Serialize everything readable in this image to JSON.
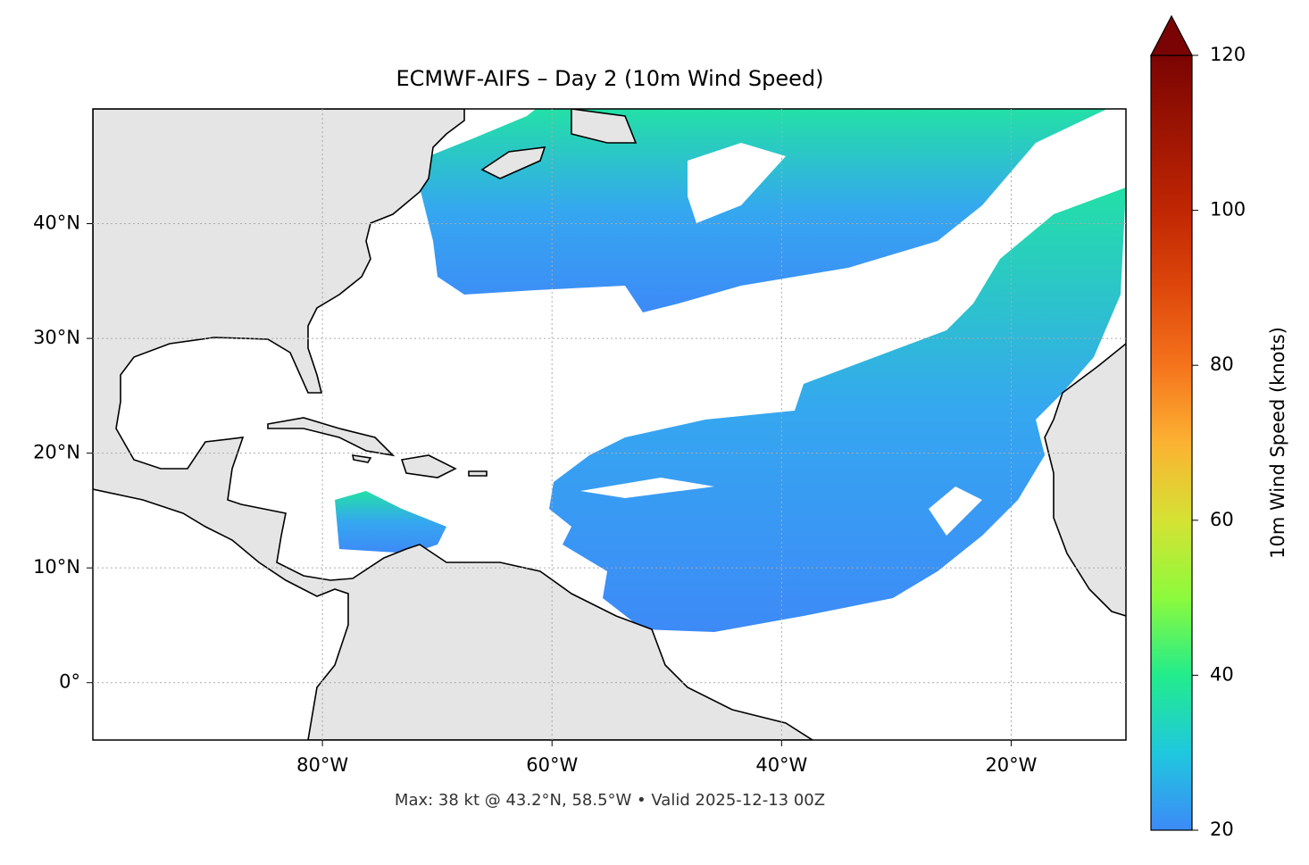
{
  "chart_data": {
    "type": "map",
    "title": "ECMWF-AIFS – Day 2 (10m Wind Speed)",
    "footer": "Max: 38 kt @ 43.2°N, 58.5°W • Valid 2025-12-13 00Z",
    "xlim": [
      -100,
      -10
    ],
    "ylim": [
      -5,
      50
    ],
    "xticks": [
      {
        "value": -80,
        "label": "80°W"
      },
      {
        "value": -60,
        "label": "60°W"
      },
      {
        "value": -40,
        "label": "40°W"
      },
      {
        "value": -20,
        "label": "20°W"
      }
    ],
    "yticks": [
      {
        "value": 0,
        "label": "0°"
      },
      {
        "value": 10,
        "label": "10°N"
      },
      {
        "value": 20,
        "label": "20°N"
      },
      {
        "value": 30,
        "label": "30°N"
      },
      {
        "value": 40,
        "label": "40°N"
      }
    ],
    "grid": true,
    "colorbar": {
      "label": "10m Wind Speed (knots)",
      "lim": [
        20,
        120
      ],
      "ticks": [
        20,
        40,
        60,
        80,
        100,
        120
      ]
    }
  }
}
